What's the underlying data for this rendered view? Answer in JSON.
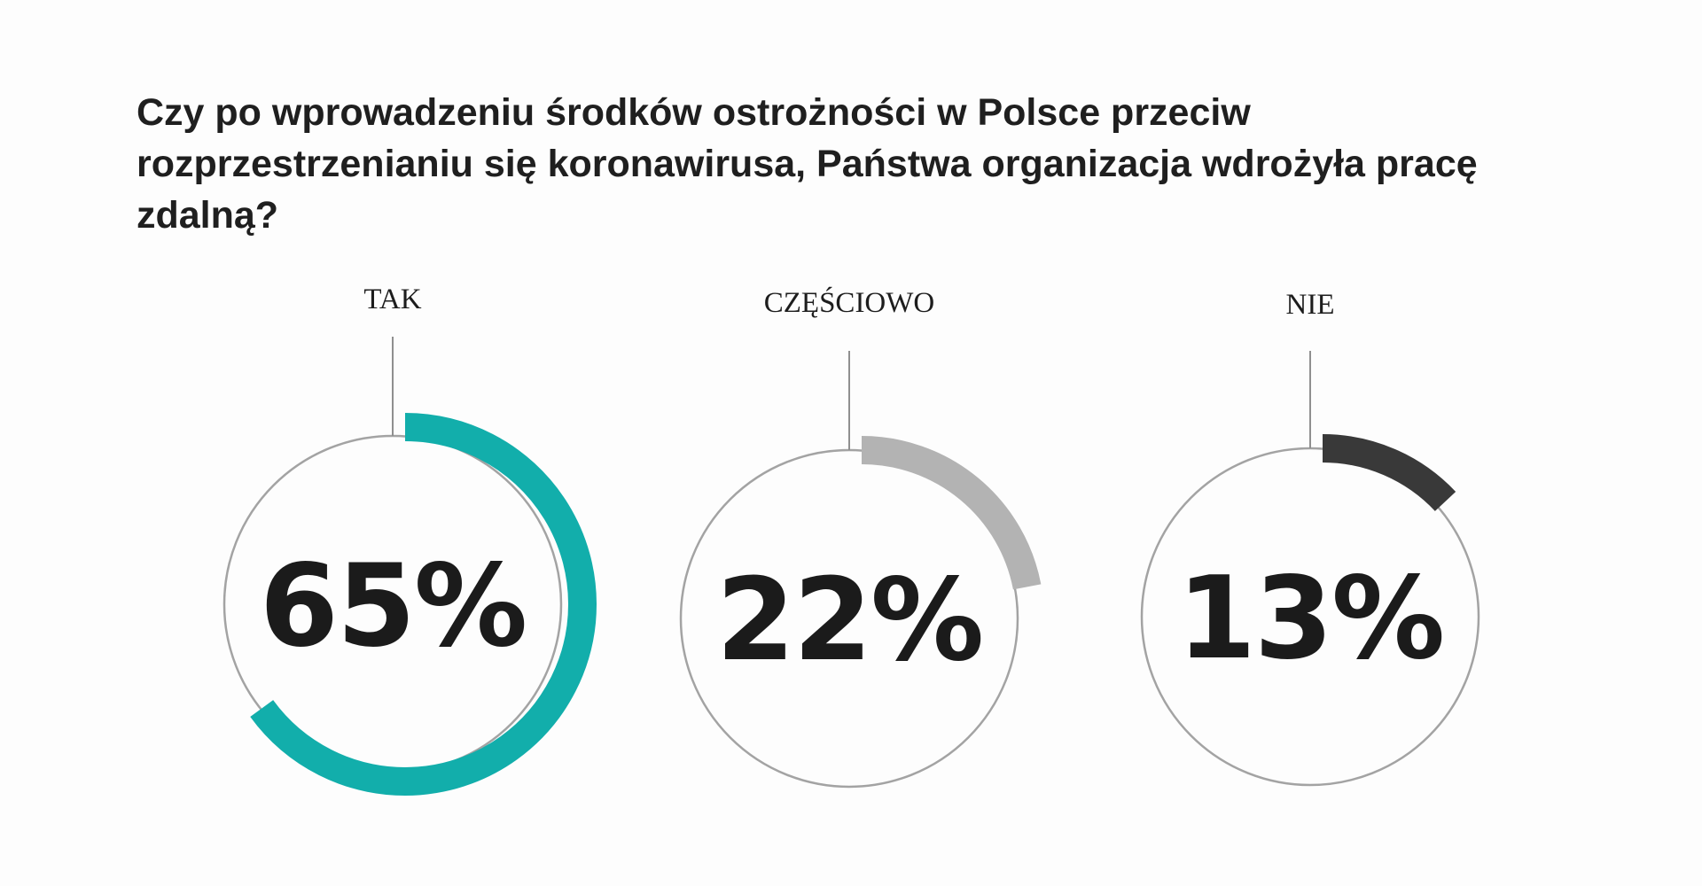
{
  "chart_data": {
    "type": "pie",
    "title": "Czy po wprowadzeniu środków ostrożności w Polsce przeciw rozprzestrzenianiu się koronawirusa, Państwa organizacja wdrożyła pracę zdalną?",
    "categories": [
      "TAK",
      "CZĘŚCIOWO",
      "NIE"
    ],
    "values": [
      65,
      22,
      13
    ],
    "value_labels": [
      "65%",
      "22%",
      "13%"
    ],
    "colors": [
      "#12aeab",
      "#b3b3b3",
      "#393939"
    ],
    "outline_color": "#a3a3a3",
    "legend": "none"
  }
}
